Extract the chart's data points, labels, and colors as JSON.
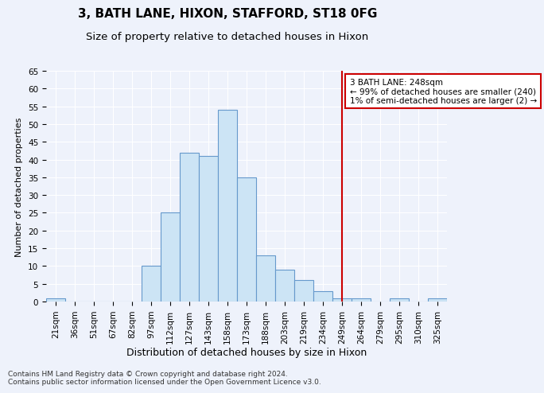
{
  "title": "3, BATH LANE, HIXON, STAFFORD, ST18 0FG",
  "subtitle": "Size of property relative to detached houses in Hixon",
  "xlabel": "Distribution of detached houses by size in Hixon",
  "ylabel": "Number of detached properties",
  "footer": "Contains HM Land Registry data © Crown copyright and database right 2024.\nContains public sector information licensed under the Open Government Licence v3.0.",
  "bin_labels": [
    "21sqm",
    "36sqm",
    "51sqm",
    "67sqm",
    "82sqm",
    "97sqm",
    "112sqm",
    "127sqm",
    "143sqm",
    "158sqm",
    "173sqm",
    "188sqm",
    "203sqm",
    "219sqm",
    "234sqm",
    "249sqm",
    "264sqm",
    "279sqm",
    "295sqm",
    "310sqm",
    "325sqm"
  ],
  "bar_values": [
    1,
    0,
    0,
    0,
    0,
    10,
    25,
    42,
    41,
    54,
    35,
    13,
    9,
    6,
    3,
    1,
    1,
    0,
    1,
    0,
    1
  ],
  "bar_color": "#cce4f5",
  "bar_edge_color": "#6699cc",
  "property_line_x": 15,
  "annotation_line0": "3 BATH LANE: 248sqm",
  "annotation_line1": "← 99% of detached houses are smaller (240)",
  "annotation_line2": "1% of semi-detached houses are larger (2) →",
  "annotation_box_color": "#ffffff",
  "annotation_box_edge": "#cc0000",
  "vline_color": "#cc0000",
  "ylim": [
    0,
    65
  ],
  "yticks": [
    0,
    5,
    10,
    15,
    20,
    25,
    30,
    35,
    40,
    45,
    50,
    55,
    60,
    65
  ],
  "background_color": "#eef2fb",
  "grid_color": "#ffffff",
  "title_fontsize": 11,
  "subtitle_fontsize": 9.5,
  "ylabel_fontsize": 8,
  "xlabel_fontsize": 9,
  "tick_fontsize": 7.5,
  "footer_fontsize": 6.5
}
